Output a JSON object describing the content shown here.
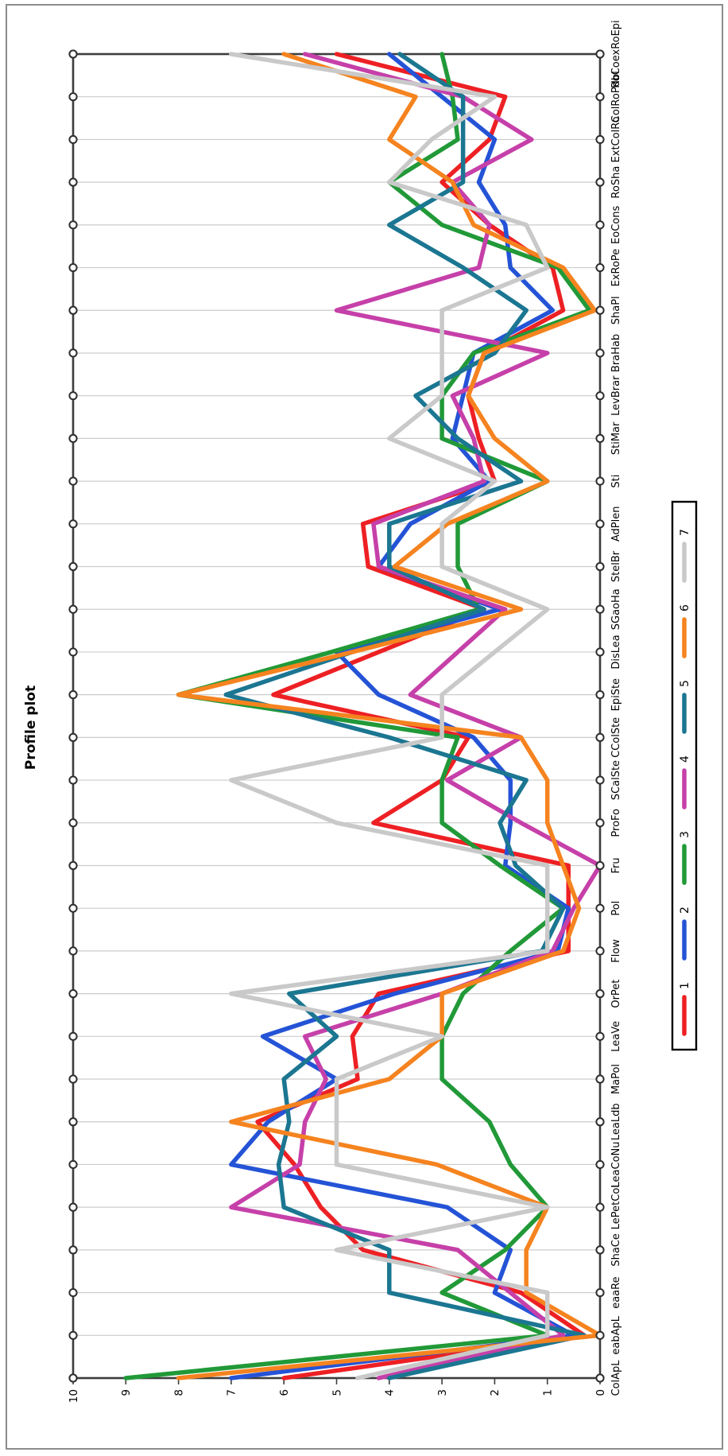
{
  "window": {
    "background": "#ffffff",
    "outer_border_color": "#8c8c8c",
    "rotation_note": "landscape chart rotated 90 degrees counter-clockwise into portrait screenshot"
  },
  "chart_data": {
    "type": "line",
    "subtype": "profile-parallel-coordinates",
    "title": "Profile plot",
    "grid": {
      "category_gridlines": true,
      "value_gridlines": false,
      "gridline_color": "#cccccc",
      "frame_color": "#3d3d3d",
      "endpoint_marker": "open-circle",
      "marker_stroke": "#2e2e2e",
      "marker_fill": "#ffffff"
    },
    "value_axis": {
      "min": 0,
      "max": 10,
      "ticks": [
        0,
        1,
        2,
        3,
        4,
        5,
        6,
        7,
        8,
        9,
        10
      ],
      "label_side": "left-of-plot (bottom of rotated screenshot, 10 at left corner)"
    },
    "categories": [
      "ColApL",
      "eabApL",
      "eaaRe",
      "ShaCe",
      "LePetCol",
      "LeaCoNu",
      "LeaLdb",
      "MaPol",
      "LeaVe",
      "OrPet",
      "Flow",
      "Pol",
      "Fru",
      "ProFo",
      "SCalSte",
      "CColSte",
      "EpiSte",
      "DisLea",
      "SGaoHa",
      "StelBr",
      "AdPlen",
      "Sti",
      "StiMar",
      "LevBrar",
      "BraHab",
      "ShaPl",
      "ExRoPe",
      "EoCons",
      "RoSha",
      "ExtColRo",
      "ColRoPdbl",
      "RoCoexRoEpi"
    ],
    "series": [
      {
        "name": "1",
        "color": "#ed2024",
        "values": [
          6,
          0.3,
          1.5,
          4.5,
          5.3,
          5.8,
          6.5,
          4.6,
          4.7,
          4.2,
          0.6,
          0.6,
          0.6,
          4.3,
          3,
          2.5,
          6.2,
          4.2,
          2.2,
          4.4,
          4.5,
          2,
          2.3,
          2.5,
          2.2,
          0.7,
          0.9,
          2.1,
          3,
          2.1,
          1.8,
          5
        ]
      },
      {
        "name": "2",
        "color": "#2453d6",
        "values": [
          7,
          0.5,
          2,
          1.7,
          2.9,
          7,
          6.3,
          5,
          6.4,
          3.9,
          0.8,
          0.6,
          1.8,
          1.7,
          1.7,
          2.4,
          4.2,
          5,
          1.9,
          4.2,
          3.6,
          2.1,
          2.8,
          2.6,
          2.4,
          0.9,
          1.7,
          1.8,
          2.3,
          2,
          3,
          4
        ]
      },
      {
        "name": "3",
        "color": "#219938",
        "values": [
          9,
          1,
          3,
          1.8,
          1,
          1.7,
          2.1,
          3,
          3,
          2.6,
          1.7,
          0.7,
          1.9,
          3,
          3,
          2.7,
          8,
          5.1,
          2.3,
          2.7,
          2.7,
          1,
          3,
          3,
          2.4,
          0.2,
          0.8,
          3,
          4,
          2.7,
          2.8,
          3
        ]
      },
      {
        "name": "4",
        "color": "#c640a9",
        "values": [
          4.2,
          0.7,
          1.7,
          2.7,
          7,
          5.7,
          5.6,
          5.2,
          5.6,
          3,
          0.9,
          0.5,
          0,
          1.5,
          2.9,
          1.5,
          3.6,
          2.7,
          1.8,
          4.2,
          4.3,
          2.2,
          2.4,
          2.8,
          1,
          5,
          2.3,
          2.1,
          2.8,
          1.3,
          2.6,
          5.6
        ]
      },
      {
        "name": "5",
        "color": "#1b7691",
        "values": [
          4,
          0.3,
          4,
          4,
          6,
          6.1,
          5.9,
          6,
          5,
          5.9,
          1.1,
          0.7,
          1.6,
          1.9,
          1.4,
          4,
          7.1,
          4.7,
          2.2,
          4,
          4,
          1.5,
          2.7,
          3.5,
          2,
          1.4,
          2.6,
          4,
          2.6,
          2.6,
          2.6,
          3.8
        ]
      },
      {
        "name": "6",
        "color": "#f5831f",
        "values": [
          8,
          0,
          1.4,
          1.4,
          1,
          3.1,
          7,
          4,
          3,
          3,
          0.7,
          0.4,
          0.7,
          1,
          1,
          1.5,
          8,
          4.7,
          1.5,
          3.9,
          2.9,
          1,
          2,
          2.5,
          2.2,
          0.1,
          0.7,
          2.4,
          2.8,
          4,
          3.5,
          6
        ]
      },
      {
        "name": "7",
        "color": "#c9c9c9",
        "values": [
          4.6,
          1,
          1,
          5,
          1,
          5,
          5,
          5,
          3,
          7,
          1,
          1,
          1,
          5,
          7,
          3,
          3,
          2,
          1,
          3,
          3,
          2,
          4,
          3,
          3,
          3,
          1,
          1.4,
          4,
          3.2,
          2,
          7
        ]
      }
    ],
    "legend": {
      "position": "bottom-center",
      "border_color": "#000000",
      "labels": [
        "1",
        "2",
        "3",
        "4",
        "5",
        "6",
        "7"
      ]
    },
    "ylim": [
      0,
      10
    ],
    "xlabel": "",
    "ylabel": ""
  }
}
